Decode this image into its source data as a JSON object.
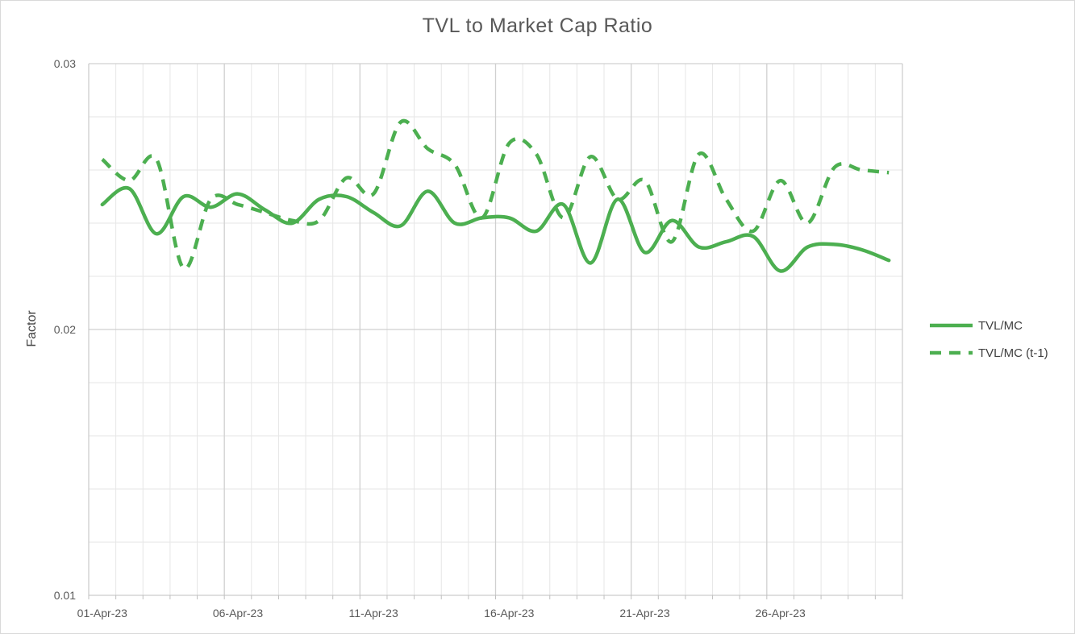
{
  "chart_data": {
    "type": "line",
    "title": "TVL to Market Cap Ratio",
    "xlabel": "",
    "ylabel": "Factor",
    "x": [
      "01-Apr-23",
      "02-Apr-23",
      "03-Apr-23",
      "04-Apr-23",
      "05-Apr-23",
      "06-Apr-23",
      "07-Apr-23",
      "08-Apr-23",
      "09-Apr-23",
      "10-Apr-23",
      "11-Apr-23",
      "12-Apr-23",
      "13-Apr-23",
      "14-Apr-23",
      "15-Apr-23",
      "16-Apr-23",
      "17-Apr-23",
      "18-Apr-23",
      "19-Apr-23",
      "20-Apr-23",
      "21-Apr-23",
      "22-Apr-23",
      "23-Apr-23",
      "24-Apr-23",
      "25-Apr-23",
      "26-Apr-23",
      "27-Apr-23",
      "28-Apr-23",
      "29-Apr-23",
      "30-Apr-23"
    ],
    "x_tick_labels": [
      "01-Apr-23",
      "06-Apr-23",
      "11-Apr-23",
      "16-Apr-23",
      "21-Apr-23",
      "26-Apr-23"
    ],
    "ylim": [
      0.01,
      0.03
    ],
    "y_tick_labels": [
      "0.01",
      "0.02",
      "0.03"
    ],
    "y_ticks": [
      0.01,
      0.02,
      0.03
    ],
    "y_minor_step": 0.002,
    "grid": true,
    "legend_position": "right",
    "series": [
      {
        "name": "TVL/MC",
        "style": "solid",
        "color": "#4caf50",
        "values": [
          0.0247,
          0.0253,
          0.0236,
          0.025,
          0.0246,
          0.0251,
          0.0245,
          0.024,
          0.0249,
          0.025,
          0.0244,
          0.0239,
          0.0252,
          0.024,
          0.0242,
          0.0242,
          0.0237,
          0.0247,
          0.0225,
          0.0249,
          0.0229,
          0.0241,
          0.0231,
          0.0233,
          0.0235,
          0.0222,
          0.0231,
          0.0232,
          0.023,
          0.0226
        ]
      },
      {
        "name": "TVL/MC (t-1)",
        "style": "dashed",
        "color": "#4caf50",
        "values": [
          0.0264,
          0.0256,
          0.0264,
          0.0223,
          0.0249,
          0.0247,
          0.0244,
          0.0241,
          0.0241,
          0.0257,
          0.0251,
          0.0278,
          0.0268,
          0.0262,
          0.0242,
          0.027,
          0.0266,
          0.0242,
          0.0265,
          0.0249,
          0.0256,
          0.0233,
          0.0266,
          0.0249,
          0.0237,
          0.0256,
          0.024,
          0.0261,
          0.026,
          0.0259
        ]
      }
    ]
  }
}
